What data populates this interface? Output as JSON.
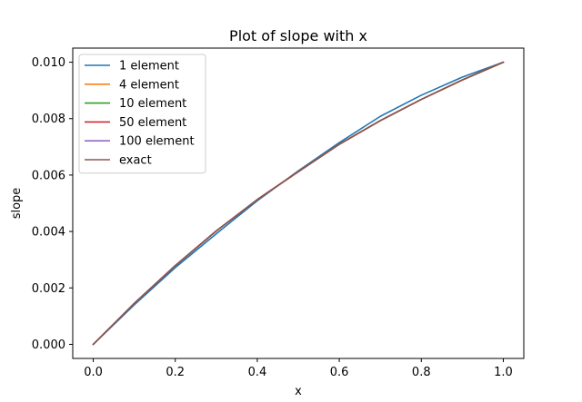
{
  "chart_data": {
    "type": "line",
    "title": "Plot of slope with x",
    "xlabel": "x",
    "ylabel": "slope",
    "xlim": [
      -0.05,
      1.05
    ],
    "ylim": [
      -0.0005,
      0.0105
    ],
    "xticks": [
      0.0,
      0.2,
      0.4,
      0.6,
      0.8,
      1.0
    ],
    "xtick_labels": [
      "0.0",
      "0.2",
      "0.4",
      "0.6",
      "0.8",
      "1.0"
    ],
    "yticks": [
      0.0,
      0.002,
      0.004,
      0.006,
      0.008,
      0.01
    ],
    "ytick_labels": [
      "0.000",
      "0.002",
      "0.004",
      "0.006",
      "0.008",
      "0.010"
    ],
    "grid": false,
    "legend_position": "upper-left",
    "series": [
      {
        "name": "1 element",
        "color": "#1f77b4",
        "x": [
          0.0,
          0.1,
          0.2,
          0.3,
          0.4,
          0.5,
          0.6,
          0.7,
          0.8,
          0.9,
          1.0
        ],
        "y": [
          0.0,
          0.0014,
          0.00272,
          0.00392,
          0.00509,
          0.00615,
          0.00715,
          0.00808,
          0.00883,
          0.00947,
          0.01
        ]
      },
      {
        "name": "4 element",
        "color": "#ff7f0e",
        "x": [
          0.0,
          0.1,
          0.2,
          0.3,
          0.4,
          0.5,
          0.6,
          0.7,
          0.8,
          0.9,
          1.0
        ],
        "y": [
          0.0,
          0.00145,
          0.00279,
          0.00402,
          0.00513,
          0.00612,
          0.00709,
          0.00793,
          0.00868,
          0.00937,
          0.01
        ]
      },
      {
        "name": "10 element",
        "color": "#2ca02c",
        "x": [
          0.0,
          0.1,
          0.2,
          0.3,
          0.4,
          0.5,
          0.6,
          0.7,
          0.8,
          0.9,
          1.0
        ],
        "y": [
          0.0,
          0.00145,
          0.00279,
          0.00402,
          0.00513,
          0.00612,
          0.00709,
          0.00793,
          0.00868,
          0.00937,
          0.01
        ]
      },
      {
        "name": "50 element",
        "color": "#d62728",
        "x": [
          0.0,
          0.1,
          0.2,
          0.3,
          0.4,
          0.5,
          0.6,
          0.7,
          0.8,
          0.9,
          1.0
        ],
        "y": [
          0.0,
          0.00145,
          0.00279,
          0.00402,
          0.00513,
          0.00612,
          0.00709,
          0.00793,
          0.00868,
          0.00937,
          0.01
        ]
      },
      {
        "name": "100 element",
        "color": "#9467bd",
        "x": [
          0.0,
          0.1,
          0.2,
          0.3,
          0.4,
          0.5,
          0.6,
          0.7,
          0.8,
          0.9,
          1.0
        ],
        "y": [
          0.0,
          0.00145,
          0.00279,
          0.00402,
          0.00513,
          0.00612,
          0.00709,
          0.00793,
          0.00868,
          0.00937,
          0.01
        ]
      },
      {
        "name": "exact",
        "color": "#8c564b",
        "x": [
          0.0,
          0.1,
          0.2,
          0.3,
          0.4,
          0.5,
          0.6,
          0.7,
          0.8,
          0.9,
          1.0
        ],
        "y": [
          0.0,
          0.00145,
          0.00279,
          0.00402,
          0.00513,
          0.00612,
          0.00709,
          0.00793,
          0.00868,
          0.00937,
          0.01
        ]
      }
    ]
  }
}
